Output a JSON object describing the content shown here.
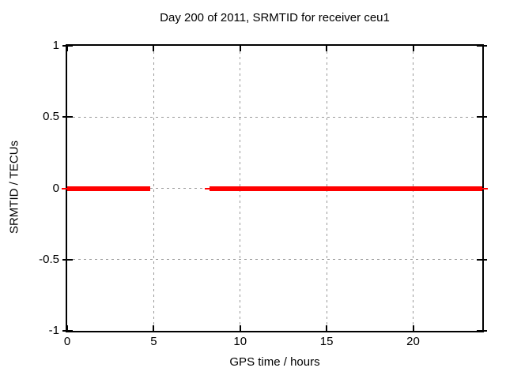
{
  "chart_data": {
    "type": "line",
    "title": "Day 200 of 2011, SRMTID for receiver ceu1",
    "xlabel": "GPS time / hours",
    "ylabel": "SRMTID / TECUs",
    "xlim": [
      0,
      24
    ],
    "ylim": [
      -1,
      1
    ],
    "x_ticks": [
      0,
      5,
      10,
      15,
      20
    ],
    "x_tick_labels": [
      "0",
      "5",
      "10",
      "15",
      "20"
    ],
    "y_ticks": [
      1,
      0.5,
      0,
      -0.5,
      -1
    ],
    "y_tick_labels": [
      "1",
      "0.5",
      "0",
      "-0.5",
      "-1"
    ],
    "grid": true,
    "grid_color": "#999999",
    "border_color": "#000000",
    "background_color": "#ffffff",
    "legend": "none",
    "series": [
      {
        "name": "SRMTID",
        "color": "#ff0000",
        "y": 0,
        "segments": [
          {
            "x_start": -0.3,
            "x_end": 0,
            "style": "thin"
          },
          {
            "x_start": 0,
            "x_end": 4.8,
            "style": "thick"
          },
          {
            "x_start": 7.95,
            "x_end": 8.25,
            "style": "thin"
          },
          {
            "x_start": 8.25,
            "x_end": 24,
            "style": "thick"
          },
          {
            "x_start": 24,
            "x_end": 24.3,
            "style": "thin"
          }
        ]
      }
    ]
  }
}
